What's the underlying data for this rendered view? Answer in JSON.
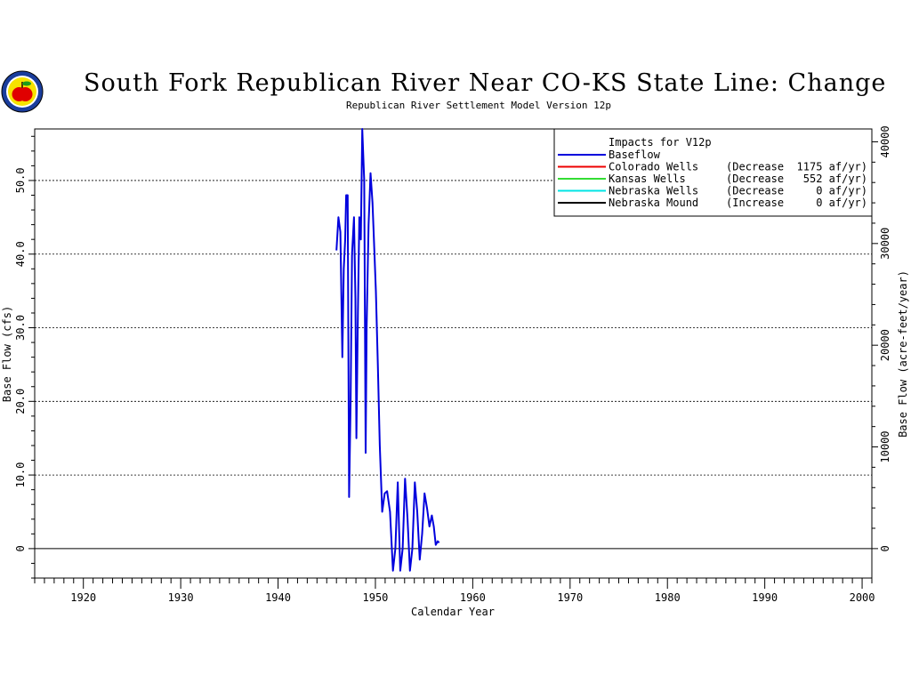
{
  "chart_data": {
    "type": "line",
    "title": "South Fork Republican River Near CO-KS State Line: Change",
    "subtitle": "Republican River Settlement Model Version 12p",
    "xlabel": "Calendar Year",
    "ylabel": "Base Flow (cfs)",
    "y2label": "Base Flow (acre-feet/year)",
    "xlim": [
      1915,
      2001
    ],
    "ylim": [
      -4,
      57
    ],
    "y2lim": [
      -2896,
      41265
    ],
    "x_ticks": [
      "1920",
      "1930",
      "1940",
      "1950",
      "1960",
      "1970",
      "1980",
      "1990",
      "2000"
    ],
    "y_ticks": [
      "0",
      "10.0",
      "20.0",
      "30.0",
      "40.0",
      "50.0"
    ],
    "y2_ticks": [
      "0",
      "10000",
      "20000",
      "30000",
      "40000"
    ],
    "grid": "horizontal dashed at 10, 20, 30, 40, 50",
    "legend": {
      "placement": "top-right",
      "title": "Impacts for V12p",
      "entries": [
        {
          "label": "Baseflow",
          "detail": "",
          "color": "#0000dd"
        },
        {
          "label": "Colorado Wells",
          "detail": "(Decrease  1175 af/yr)",
          "color": "#ee0000"
        },
        {
          "label": "Kansas Wells",
          "detail": "(Decrease   552 af/yr)",
          "color": "#33dd33"
        },
        {
          "label": "Nebraska Wells",
          "detail": "(Decrease     0 af/yr)",
          "color": "#00e5e5"
        },
        {
          "label": "Nebraska Mound",
          "detail": "(Increase     0 af/yr)",
          "color": "#000000"
        }
      ]
    },
    "series": [
      {
        "name": "Baseflow",
        "color": "#0000dd",
        "x": [
          1946.0,
          1946.2,
          1946.4,
          1946.6,
          1946.75,
          1946.9,
          1947.0,
          1947.15,
          1947.3,
          1947.45,
          1947.6,
          1947.8,
          1947.95,
          1948.05,
          1948.2,
          1948.35,
          1948.5,
          1948.65,
          1948.85,
          1949.0,
          1949.1,
          1949.3,
          1949.5,
          1949.7,
          1949.85,
          1950.05,
          1950.25,
          1950.45,
          1950.7,
          1950.95,
          1951.2,
          1951.5,
          1951.8,
          1952.05,
          1952.3,
          1952.55,
          1952.8,
          1953.05,
          1953.3,
          1953.55,
          1953.8,
          1954.05,
          1954.3,
          1954.55,
          1954.8,
          1955.05,
          1955.3,
          1955.55,
          1955.8,
          1956.0,
          1956.2,
          1956.4,
          1956.55
        ],
        "y": [
          40.5,
          45.0,
          43.0,
          26.0,
          38.0,
          42.0,
          48.0,
          48.0,
          7.0,
          20.0,
          40.0,
          45.0,
          34.0,
          15.0,
          32.0,
          45.0,
          42.0,
          57.0,
          50.0,
          13.0,
          30.0,
          44.0,
          51.0,
          47.0,
          42.0,
          35.0,
          25.0,
          14.0,
          5.0,
          7.5,
          7.8,
          5.0,
          -3.0,
          0.0,
          9.0,
          -3.0,
          0.0,
          9.5,
          4.0,
          -3.0,
          0.0,
          9.0,
          5.0,
          -1.5,
          2.0,
          7.5,
          5.5,
          3.0,
          4.5,
          3.0,
          0.5,
          1.0,
          0.8
        ]
      }
    ]
  }
}
